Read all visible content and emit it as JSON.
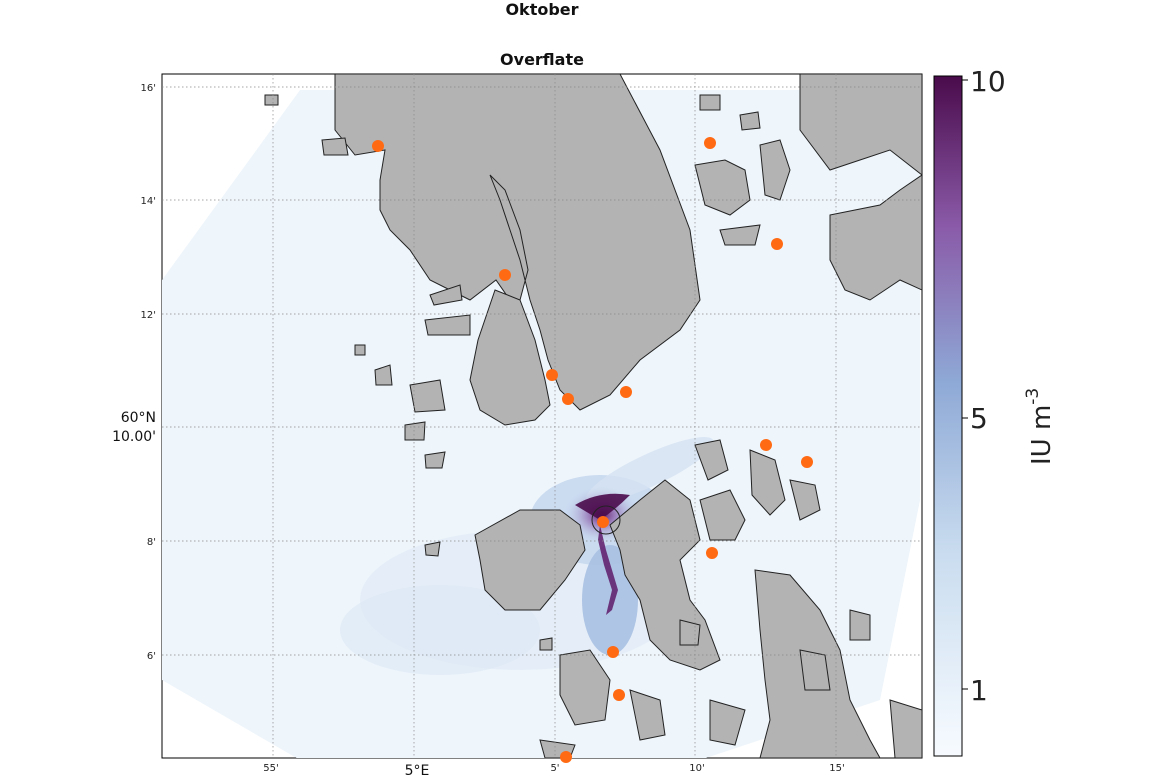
{
  "titles": {
    "line1": "Oktober",
    "line2": "Overflate"
  },
  "map": {
    "lat_ticks": [
      "16'",
      "14'",
      "12'",
      "8'",
      "6'"
    ],
    "lat_major": [
      "60°N",
      "10.00'"
    ],
    "lon_ticks": [
      "55'",
      "5°E",
      "5'",
      "10'",
      "15'"
    ],
    "land_color": "#b3b3b3",
    "sea_color": "#f4f9fc",
    "site_color": "#ff6a13",
    "site_count": 15
  },
  "colorbar": {
    "max_label": "10",
    "mid_label": "5",
    "min_label": "1",
    "unit": "IU m",
    "unit_exp": "-3",
    "color_low": "#f7fbff",
    "color_mid": "#8ea9d6",
    "color_high": "#4a0b4b"
  }
}
